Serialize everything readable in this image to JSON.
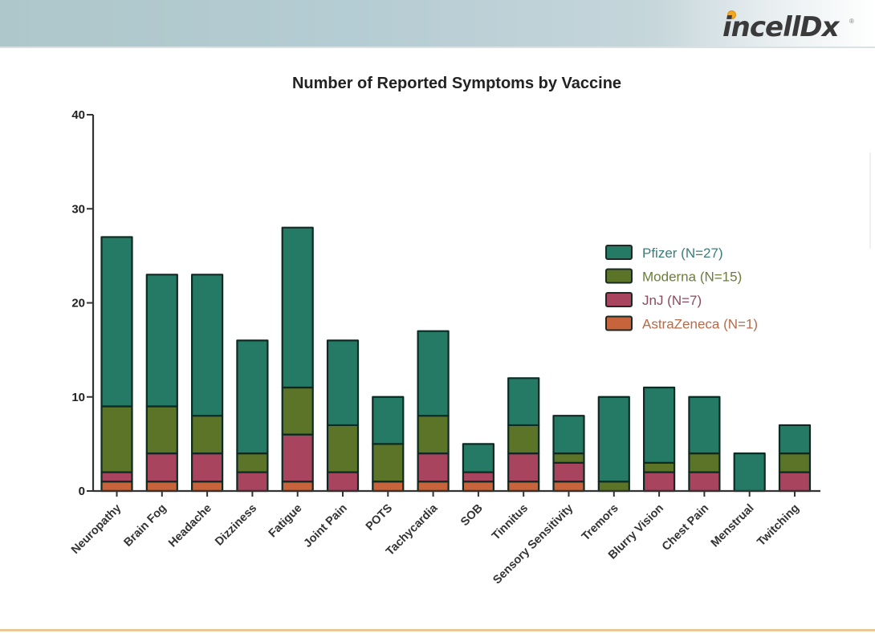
{
  "brand": {
    "logo_text": "incellDx",
    "registered_mark": "®",
    "logo_dot_color": "#f0a820"
  },
  "chart_data": {
    "type": "bar",
    "stacked": true,
    "title": "Number of Reported Symptoms by Vaccine",
    "xlabel": "",
    "ylabel": "",
    "ylim": [
      0,
      40
    ],
    "yticks": [
      0,
      10,
      20,
      30,
      40
    ],
    "grid": false,
    "legend_position": "right",
    "categories": [
      "Neuropathy",
      "Brain Fog",
      "Headache",
      "Dizziness",
      "Fatigue",
      "Joint Pain",
      "POTS",
      "Tachycardia",
      "SOB",
      "Tinnitus",
      "Sensory Sensitivity",
      "Tremors",
      "Blurry Vision",
      "Chest Pain",
      "Menstrual",
      "Twitching"
    ],
    "series": [
      {
        "name": "AstraZeneca (N=1)",
        "color": "#c8643c",
        "text_color": "#b86a48",
        "values": [
          1,
          1,
          1,
          0,
          1,
          0,
          1,
          1,
          1,
          1,
          1,
          0,
          0,
          0,
          0,
          0
        ]
      },
      {
        "name": "JnJ (N=7)",
        "color": "#a8445e",
        "text_color": "#8a4a60",
        "values": [
          1,
          3,
          3,
          2,
          5,
          2,
          0,
          3,
          1,
          3,
          2,
          0,
          2,
          2,
          0,
          2
        ]
      },
      {
        "name": "Moderna (N=15)",
        "color": "#5c7428",
        "text_color": "#6b7d3a",
        "values": [
          7,
          5,
          4,
          2,
          5,
          5,
          4,
          4,
          0,
          3,
          1,
          1,
          1,
          2,
          0,
          2
        ]
      },
      {
        "name": "Pfizer (N=27)",
        "color": "#257a66",
        "text_color": "#3a7c78",
        "values": [
          18,
          14,
          15,
          12,
          17,
          9,
          5,
          9,
          3,
          5,
          4,
          9,
          8,
          6,
          4,
          3
        ]
      }
    ],
    "legend_order": [
      "Pfizer (N=27)",
      "Moderna (N=15)",
      "JnJ (N=7)",
      "AstraZeneca (N=1)"
    ]
  }
}
